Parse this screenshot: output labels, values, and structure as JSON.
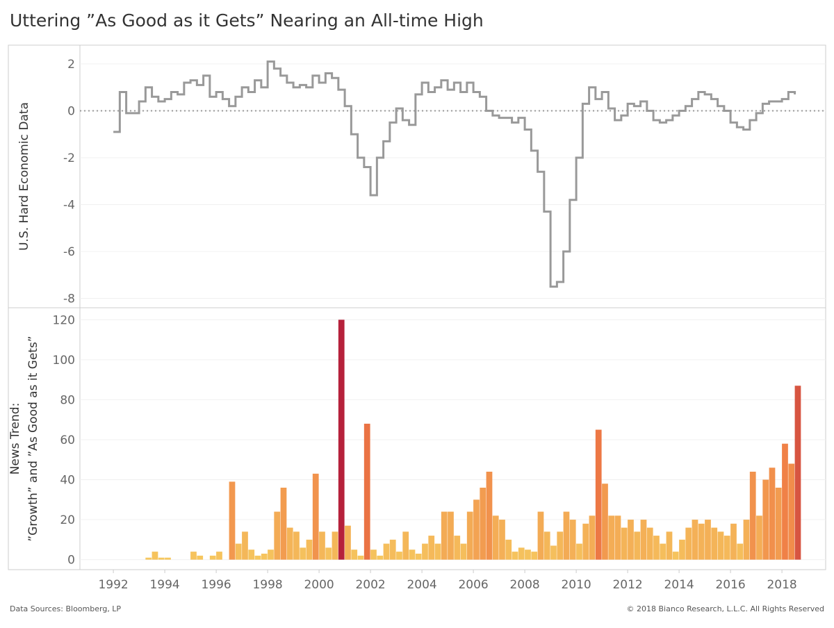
{
  "title": "Uttering ”As Good as it Gets” Nearing an All-time High",
  "source": "Data Sources: Bloomberg, LP",
  "copyright": "© 2018 Bianco Research, L.L.C. All Rights Reserved",
  "chart_data": [
    {
      "type": "line",
      "y_label": [
        "U.S. Hard Economic Data"
      ],
      "color": "#999999",
      "zero_line": true,
      "grid": true,
      "xlim": [
        1990.7,
        2019.7
      ],
      "ylim": [
        -8.4,
        2.8
      ],
      "yticks": [
        -8,
        -6,
        -4,
        -2,
        0,
        2
      ],
      "x": [
        1992,
        1992.25,
        1992.5,
        1992.75,
        1993,
        1993.25,
        1993.5,
        1993.75,
        1994,
        1994.25,
        1994.5,
        1994.75,
        1995,
        1995.25,
        1995.5,
        1995.75,
        1996,
        1996.25,
        1996.5,
        1996.75,
        1997,
        1997.25,
        1997.5,
        1997.75,
        1998,
        1998.25,
        1998.5,
        1998.75,
        1999,
        1999.25,
        1999.5,
        1999.75,
        2000,
        2000.25,
        2000.5,
        2000.75,
        2001,
        2001.25,
        2001.5,
        2001.75,
        2002,
        2002.25,
        2002.5,
        2002.75,
        2003,
        2003.25,
        2003.5,
        2003.75,
        2004,
        2004.25,
        2004.5,
        2004.75,
        2005,
        2005.25,
        2005.5,
        2005.75,
        2006,
        2006.25,
        2006.5,
        2006.75,
        2007,
        2007.25,
        2007.5,
        2007.75,
        2008,
        2008.25,
        2008.5,
        2008.75,
        2009,
        2009.25,
        2009.5,
        2009.75,
        2010,
        2010.25,
        2010.5,
        2010.75,
        2011,
        2011.25,
        2011.5,
        2011.75,
        2012,
        2012.25,
        2012.5,
        2012.75,
        2013,
        2013.25,
        2013.5,
        2013.75,
        2014,
        2014.25,
        2014.5,
        2014.75,
        2015,
        2015.25,
        2015.5,
        2015.75,
        2016,
        2016.25,
        2016.5,
        2016.75,
        2017,
        2017.25,
        2017.5,
        2017.75,
        2018,
        2018.25,
        2018.5
      ],
      "values": [
        -0.9,
        0.8,
        -0.1,
        -0.1,
        0.4,
        1.0,
        0.6,
        0.4,
        0.5,
        0.8,
        0.7,
        1.2,
        1.3,
        1.1,
        1.5,
        0.6,
        0.8,
        0.5,
        0.2,
        0.6,
        1.0,
        0.8,
        1.3,
        1.0,
        2.1,
        1.8,
        1.5,
        1.2,
        1.0,
        1.1,
        1.0,
        1.5,
        1.2,
        1.6,
        1.4,
        0.9,
        0.2,
        -1.0,
        -2.0,
        -2.4,
        -3.6,
        -2.0,
        -1.3,
        -0.5,
        0.1,
        -0.4,
        -0.6,
        0.7,
        1.2,
        0.8,
        1.0,
        1.3,
        0.9,
        1.2,
        0.8,
        1.2,
        0.8,
        0.6,
        0.0,
        -0.2,
        -0.3,
        -0.3,
        -0.5,
        -0.3,
        -0.8,
        -1.7,
        -2.6,
        -4.3,
        -7.5,
        -7.3,
        -6.0,
        -3.8,
        -2.0,
        0.3,
        1.0,
        0.5,
        0.8,
        0.1,
        -0.4,
        -0.2,
        0.3,
        0.2,
        0.4,
        0.0,
        -0.4,
        -0.5,
        -0.4,
        -0.2,
        0.0,
        0.2,
        0.5,
        0.8,
        0.7,
        0.5,
        0.2,
        0.0,
        -0.5,
        -0.7,
        -0.8,
        -0.4,
        -0.1,
        0.3,
        0.4,
        0.4,
        0.5,
        0.8,
        0.7
      ]
    },
    {
      "type": "bar",
      "y_label": [
        "News Trend:",
        "”Growth” and ”As Good as it Gets”"
      ],
      "color_scale": [
        "#f6c85f",
        "#ef7b45",
        "#b0173a"
      ],
      "grid": true,
      "xlim": [
        1990.7,
        2019.7
      ],
      "xticks": [
        1992,
        1994,
        1996,
        1998,
        2000,
        2002,
        2004,
        2006,
        2008,
        2010,
        2012,
        2014,
        2016,
        2018
      ],
      "ylim": [
        -5,
        126
      ],
      "yticks": [
        0,
        20,
        40,
        60,
        80,
        100,
        120
      ],
      "x": [
        1992,
        1992.25,
        1992.5,
        1992.75,
        1993,
        1993.25,
        1993.5,
        1993.75,
        1994,
        1994.25,
        1994.5,
        1994.75,
        1995,
        1995.25,
        1995.5,
        1995.75,
        1996,
        1996.25,
        1996.5,
        1996.75,
        1997,
        1997.25,
        1997.5,
        1997.75,
        1998,
        1998.25,
        1998.5,
        1998.75,
        1999,
        1999.25,
        1999.5,
        1999.75,
        2000,
        2000.25,
        2000.5,
        2000.75,
        2001,
        2001.25,
        2001.5,
        2001.75,
        2002,
        2002.25,
        2002.5,
        2002.75,
        2003,
        2003.25,
        2003.5,
        2003.75,
        2004,
        2004.25,
        2004.5,
        2004.75,
        2005,
        2005.25,
        2005.5,
        2005.75,
        2006,
        2006.25,
        2006.5,
        2006.75,
        2007,
        2007.25,
        2007.5,
        2007.75,
        2008,
        2008.25,
        2008.5,
        2008.75,
        2009,
        2009.25,
        2009.5,
        2009.75,
        2010,
        2010.25,
        2010.5,
        2010.75,
        2011,
        2011.25,
        2011.5,
        2011.75,
        2012,
        2012.25,
        2012.5,
        2012.75,
        2013,
        2013.25,
        2013.5,
        2013.75,
        2014,
        2014.25,
        2014.5,
        2014.75,
        2015,
        2015.25,
        2015.5,
        2015.75,
        2016,
        2016.25,
        2016.5,
        2016.75,
        2017,
        2017.25,
        2017.5,
        2017.75,
        2018,
        2018.25,
        2018.5
      ],
      "values": [
        0,
        0,
        0,
        0,
        0,
        1,
        4,
        1,
        1,
        0,
        0,
        0,
        4,
        2,
        0,
        2,
        4,
        0,
        39,
        8,
        14,
        5,
        2,
        3,
        5,
        24,
        36,
        16,
        14,
        6,
        10,
        43,
        14,
        6,
        14,
        120,
        17,
        5,
        2,
        68,
        5,
        2,
        8,
        10,
        4,
        14,
        5,
        3,
        8,
        12,
        8,
        24,
        24,
        12,
        8,
        24,
        30,
        36,
        44,
        22,
        20,
        10,
        4,
        6,
        5,
        4,
        24,
        14,
        7,
        14,
        24,
        20,
        8,
        18,
        22,
        65,
        38,
        22,
        22,
        16,
        20,
        14,
        20,
        16,
        12,
        8,
        14,
        4,
        10,
        16,
        20,
        18,
        20,
        16,
        14,
        12,
        18,
        8,
        20,
        44,
        22,
        40,
        46,
        36,
        58,
        48,
        87
      ]
    }
  ]
}
